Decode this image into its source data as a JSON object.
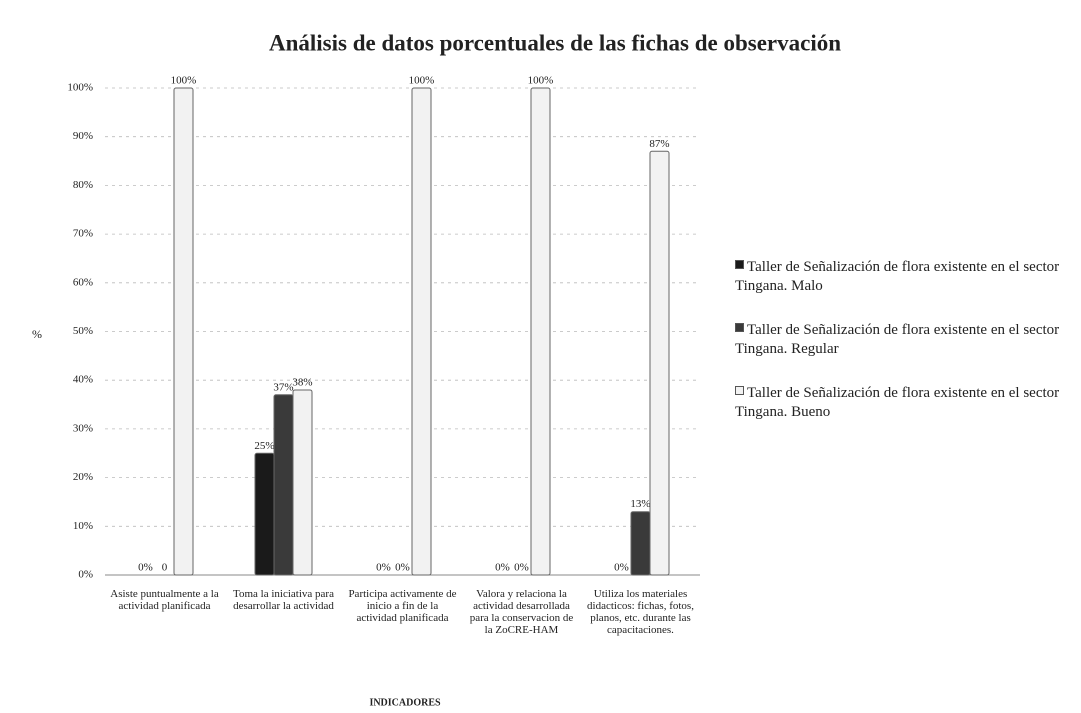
{
  "chart_data": {
    "type": "bar",
    "title": "Análisis de datos porcentuales de las fichas de observación",
    "x_label": "INDICADORES",
    "y_label": "%",
    "categories": [
      "Asiste puntualmente a la actividad planificada",
      "Toma la iniciativa para desarrollar la actividad",
      "Participa activamente de inicio a fin de la actividad planificada",
      "Valora y relaciona la actividad desarrollada para la conservacion de la ZoCRE-HAM",
      "Utiliza los materiales didacticos: fichas, fotos, planos, etc. durante las capacitaciones."
    ],
    "series": [
      {
        "name": "Taller de Señalización de flora existente en el sector Tingana. Malo",
        "color": "#1a1a1a",
        "values": [
          0,
          25,
          0,
          0,
          0
        ],
        "value_labels": [
          "0%",
          "25%",
          "0%",
          "0%",
          "0%"
        ]
      },
      {
        "name": "Taller de Señalización de flora existente en el sector Tingana. Regular",
        "color": "#3a3a3a",
        "values": [
          0,
          37,
          0,
          0,
          13
        ],
        "value_labels": [
          "0",
          "37%",
          "0%",
          "0%",
          "13%"
        ]
      },
      {
        "name": "Taller de Señalización de flora existente en el sector Tingana. Bueno",
        "color": "#f2f2f2",
        "values": [
          100,
          38,
          100,
          100,
          87
        ],
        "value_labels": [
          "100%",
          "38%",
          "100%",
          "100%",
          "87%"
        ]
      }
    ],
    "ylim": [
      0,
      100
    ],
    "yticks": [
      {
        "value": 0,
        "label": "0%"
      },
      {
        "value": 10,
        "label": "10%"
      },
      {
        "value": 20,
        "label": "20%"
      },
      {
        "value": 30,
        "label": "30%"
      },
      {
        "value": 40,
        "label": "40%"
      },
      {
        "value": 50,
        "label": "50%"
      },
      {
        "value": 60,
        "label": "60%"
      },
      {
        "value": 70,
        "label": "70%"
      },
      {
        "value": 80,
        "label": "80%"
      },
      {
        "value": 90,
        "label": "90%"
      },
      {
        "value": 100,
        "label": "100%"
      }
    ],
    "grid": true,
    "legend": "right"
  }
}
